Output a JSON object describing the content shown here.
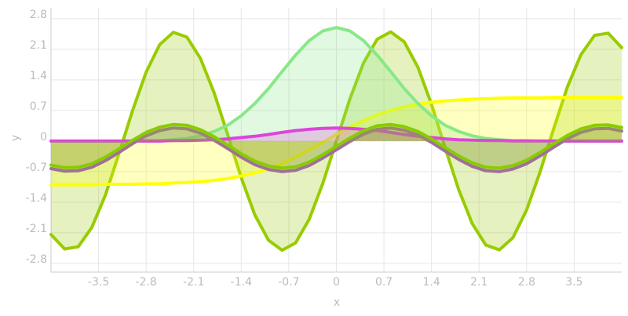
{
  "chart_data": {
    "type": "area",
    "xlabel": "x",
    "ylabel": "y",
    "x": [
      -4.2,
      -4.0,
      -3.8,
      -3.6,
      -3.4,
      -3.2,
      -3.0,
      -2.8,
      -2.6,
      -2.4,
      -2.2,
      -2.0,
      -1.8,
      -1.6,
      -1.4,
      -1.2,
      -1.0,
      -0.8,
      -0.6,
      -0.4,
      -0.2,
      0,
      0.2,
      0.4,
      0.6,
      0.8,
      1.0,
      1.2,
      1.4,
      1.6,
      1.8,
      2.0,
      2.2,
      2.4,
      2.6,
      2.8,
      3.0,
      3.2,
      3.4,
      3.6,
      3.8,
      4.0,
      4.2
    ],
    "series": [
      {
        "color": "#99cc00",
        "values": [
          -2.14,
          -2.47,
          -2.42,
          -1.98,
          -1.24,
          -0.29,
          0.7,
          1.58,
          2.21,
          2.49,
          2.38,
          1.89,
          1.11,
          0.15,
          -0.84,
          -1.69,
          -2.27,
          -2.5,
          -2.33,
          -1.79,
          -0.97,
          0,
          0.97,
          1.79,
          2.33,
          2.5,
          2.27,
          1.69,
          0.84,
          -0.15,
          -1.11,
          -1.89,
          -2.38,
          -2.49,
          -2.21,
          -1.58,
          -0.7,
          0.29,
          1.24,
          1.98,
          2.42,
          2.47,
          2.14
        ]
      },
      {
        "color": "#ffff00",
        "values": [
          -1.0,
          -1.0,
          -1.0,
          -1.0,
          -0.99,
          -0.99,
          -0.99,
          -0.98,
          -0.98,
          -0.96,
          -0.95,
          -0.93,
          -0.9,
          -0.86,
          -0.8,
          -0.73,
          -0.64,
          -0.52,
          -0.37,
          -0.21,
          -0.03,
          0.15,
          0.32,
          0.47,
          0.6,
          0.7,
          0.78,
          0.84,
          0.89,
          0.92,
          0.94,
          0.96,
          0.97,
          0.98,
          0.99,
          0.99,
          0.99,
          1.0,
          1.0,
          1.0,
          1.0,
          1.0,
          1.0
        ]
      },
      {
        "color": "#88e888",
        "values": [
          0,
          0,
          0,
          0,
          0,
          0,
          0,
          0.01,
          0.01,
          0.03,
          0.06,
          0.12,
          0.22,
          0.36,
          0.58,
          0.86,
          1.2,
          1.59,
          1.97,
          2.3,
          2.52,
          2.6,
          2.52,
          2.3,
          1.97,
          1.59,
          1.2,
          0.86,
          0.58,
          0.36,
          0.22,
          0.12,
          0.06,
          0.03,
          0.01,
          0.01,
          0,
          0,
          0,
          0,
          0,
          0,
          0
        ]
      },
      {
        "color": "#dd44dd",
        "values": [
          0,
          0,
          0,
          0,
          0,
          0,
          0,
          0,
          0,
          0.01,
          0.01,
          0.02,
          0.03,
          0.05,
          0.08,
          0.11,
          0.15,
          0.2,
          0.24,
          0.27,
          0.29,
          0.3,
          0.29,
          0.27,
          0.24,
          0.2,
          0.15,
          0.11,
          0.08,
          0.05,
          0.03,
          0.02,
          0.01,
          0.01,
          0,
          0,
          0,
          0,
          0,
          0,
          0,
          0,
          0
        ]
      },
      {
        "color": "#a0709a",
        "values": [
          -0.63,
          -0.69,
          -0.68,
          -0.6,
          -0.45,
          -0.26,
          -0.06,
          0.12,
          0.24,
          0.3,
          0.28,
          0.18,
          0.02,
          -0.17,
          -0.37,
          -0.54,
          -0.65,
          -0.7,
          -0.67,
          -0.56,
          -0.39,
          -0.2,
          -0.01,
          0.16,
          0.27,
          0.3,
          0.25,
          0.14,
          -0.03,
          -0.23,
          -0.42,
          -0.58,
          -0.68,
          -0.7,
          -0.64,
          -0.52,
          -0.34,
          -0.14,
          0.05,
          0.2,
          0.28,
          0.29,
          0.23
        ]
      },
      {
        "color": "#88cc00",
        "values": [
          -0.55,
          -0.61,
          -0.6,
          -0.52,
          -0.37,
          -0.18,
          0.02,
          0.2,
          0.32,
          0.38,
          0.36,
          0.26,
          0.1,
          -0.09,
          -0.29,
          -0.46,
          -0.57,
          -0.62,
          -0.59,
          -0.48,
          -0.31,
          -0.12,
          0.07,
          0.24,
          0.35,
          0.38,
          0.33,
          0.22,
          0.05,
          -0.15,
          -0.34,
          -0.5,
          -0.6,
          -0.62,
          -0.56,
          -0.44,
          -0.26,
          -0.06,
          0.13,
          0.28,
          0.36,
          0.37,
          0.31
        ]
      }
    ],
    "xlim": [
      -4.2,
      4.2
    ],
    "ylim": [
      -3.0,
      3.05
    ],
    "xticks": [
      -3.5,
      -2.8,
      -2.1,
      -1.4,
      -0.7,
      0,
      0.7,
      1.4,
      2.1,
      2.8,
      3.5
    ],
    "yticks": [
      -2.8,
      -2.1,
      -1.4,
      -0.7,
      0,
      0.7,
      1.4,
      2.1,
      2.8
    ],
    "grid": true
  }
}
